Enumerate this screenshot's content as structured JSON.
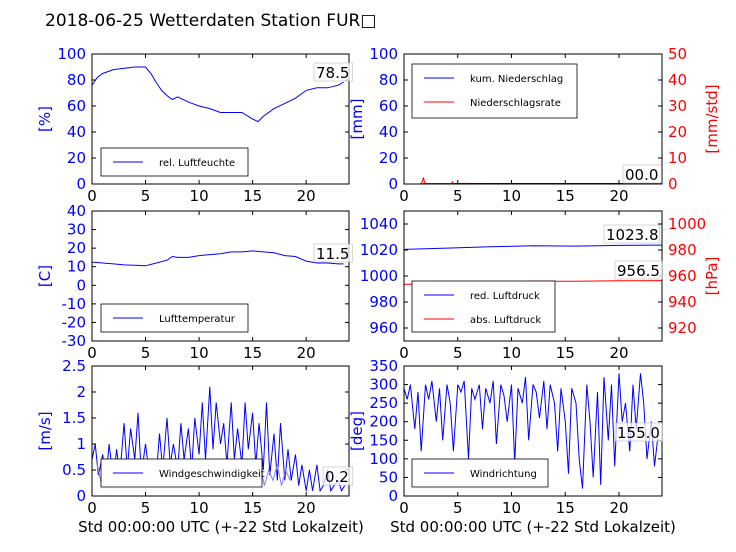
{
  "figure_title": "2018-06-25 Wetterdaten Station FUR□",
  "x_axis_label": "Std 00:00:00 UTC (+-22 Std Lokalzeit)",
  "colors": {
    "left_axis": "#0000ff",
    "right_axis": "#ff0000",
    "series_blue": "#0000ff",
    "series_red": "#ff0000",
    "series_light": "#8080ff"
  },
  "chart_data": [
    {
      "id": "humidity",
      "type": "line",
      "ylabel": "[%]",
      "xlim": [
        0,
        24
      ],
      "ylim": [
        0,
        100
      ],
      "xticks": [
        0,
        5,
        10,
        15,
        20
      ],
      "yticks": [
        0,
        20,
        40,
        60,
        80,
        100
      ],
      "legend_position": "lower-left",
      "value_label": "78.5",
      "series": [
        {
          "name": "rel. Luftfeuchte",
          "axis": "left",
          "color": "#0000ff",
          "x": [
            0,
            0.5,
            1,
            2,
            3,
            4,
            5,
            5.5,
            6,
            6.5,
            7,
            7.5,
            8,
            9,
            10,
            11,
            12,
            13,
            14,
            15,
            15.5,
            16,
            17,
            18,
            19,
            20,
            21,
            22,
            23,
            23.5
          ],
          "y": [
            76,
            82,
            85,
            88,
            89,
            90,
            90,
            85,
            78,
            72,
            68,
            65,
            67,
            63,
            60,
            58,
            55,
            55,
            55,
            50,
            48,
            52,
            58,
            62,
            66,
            72,
            74,
            74,
            76,
            78.5
          ]
        }
      ]
    },
    {
      "id": "precipitation",
      "type": "line",
      "ylabel": "[mm]",
      "ylabel_right": "[mm/std]",
      "xlim": [
        0,
        24
      ],
      "ylim": [
        0,
        100
      ],
      "ylim_right": [
        0,
        50
      ],
      "xticks": [
        0,
        5,
        10,
        15,
        20
      ],
      "yticks": [
        0,
        20,
        40,
        60,
        80,
        100
      ],
      "yticks_right": [
        0,
        10,
        20,
        30,
        40,
        50
      ],
      "legend_position": "upper-left",
      "value_label": "00.0",
      "series": [
        {
          "name": "kum. Niederschlag",
          "axis": "left",
          "color": "#0000ff",
          "x": [
            0,
            1.7,
            1.8,
            4.5,
            5,
            24
          ],
          "y": [
            0,
            0,
            0.3,
            0.3,
            0.4,
            0.4
          ]
        },
        {
          "name": "Niederschlagsrate",
          "axis": "right",
          "color": "#ff0000",
          "x": [
            0,
            1.5,
            1.6,
            1.7,
            1.8,
            1.9,
            2,
            2.1,
            4.4,
            4.5,
            4.6,
            5.5,
            5.6,
            5.7,
            24
          ],
          "y": [
            0,
            0,
            0.4,
            0.8,
            2.5,
            0.8,
            0.3,
            0,
            0,
            0.8,
            0,
            0,
            0.4,
            0,
            0
          ]
        }
      ]
    },
    {
      "id": "temperature",
      "type": "line",
      "ylabel": "[C]",
      "xlim": [
        0,
        24
      ],
      "ylim": [
        -30,
        40
      ],
      "xticks": [
        0,
        5,
        10,
        15,
        20
      ],
      "yticks": [
        -30,
        -20,
        -10,
        0,
        10,
        20,
        30,
        40
      ],
      "legend_position": "lower-left",
      "value_label": "11.5",
      "series": [
        {
          "name": "Lufttemperatur",
          "axis": "left",
          "color": "#0000ff",
          "x": [
            0,
            1,
            2,
            3,
            4,
            5,
            6,
            7,
            7.5,
            8,
            9,
            10,
            11,
            12,
            13,
            14,
            15,
            16,
            17,
            18,
            19,
            20,
            21,
            22,
            23,
            23.5
          ],
          "y": [
            12.5,
            12,
            11.5,
            11,
            10.8,
            10.5,
            12,
            13.5,
            15.5,
            15,
            15,
            16,
            16.5,
            17,
            18,
            18,
            18.5,
            18,
            17.5,
            16,
            15.5,
            13,
            12,
            12,
            11.5,
            11.5
          ]
        }
      ]
    },
    {
      "id": "pressure",
      "type": "line",
      "ylabel_right": "[hPa]",
      "xlim": [
        0,
        24
      ],
      "ylim": [
        950,
        1050
      ],
      "ylim_right": [
        910,
        1010
      ],
      "xticks": [
        0,
        5,
        10,
        15,
        20
      ],
      "yticks": [
        960,
        980,
        1000,
        1020,
        1040
      ],
      "yticks_right": [
        920,
        940,
        960,
        980,
        1000
      ],
      "legend_position": "lower-left",
      "value_labels": [
        "1023.8",
        "956.5"
      ],
      "series": [
        {
          "name": "red. Luftdruck",
          "axis": "left",
          "color": "#0000ff",
          "x": [
            0,
            4,
            8,
            12,
            16,
            20,
            24
          ],
          "y": [
            1020.5,
            1021.5,
            1022.5,
            1023.2,
            1023,
            1023.5,
            1023.8
          ]
        },
        {
          "name": "abs. Luftdruck",
          "axis": "right",
          "color": "#ff0000",
          "x": [
            0,
            4,
            8,
            12,
            16,
            20,
            24
          ],
          "y": [
            953.5,
            954.5,
            955.5,
            956,
            956,
            956.3,
            956.5
          ]
        }
      ]
    },
    {
      "id": "wind_speed",
      "type": "line",
      "ylabel": "[m/s]",
      "xlim": [
        0,
        24
      ],
      "ylim": [
        0,
        2.5
      ],
      "xticks": [
        0,
        5,
        10,
        15,
        20
      ],
      "yticks": [
        0,
        0.5,
        1.0,
        1.5,
        2.0,
        2.5
      ],
      "legend_position": "lower-left",
      "value_label": "0.2",
      "series": [
        {
          "name": "Windgeschwindigkeit",
          "axis": "left",
          "color": "#0000ff",
          "x": [
            0,
            0.3,
            0.6,
            1,
            1.3,
            1.6,
            2,
            2.3,
            2.6,
            3,
            3.3,
            3.6,
            4,
            4.3,
            4.6,
            5,
            5.3,
            5.6,
            6,
            6.3,
            6.6,
            7,
            7.3,
            7.6,
            8,
            8.3,
            8.6,
            9,
            9.3,
            9.6,
            10,
            10.3,
            10.6,
            11,
            11.3,
            11.6,
            12,
            12.3,
            12.6,
            13,
            13.3,
            13.6,
            14,
            14.3,
            14.6,
            15,
            15.3,
            15.6,
            16,
            16.3,
            16.6,
            17,
            17.3,
            17.6,
            18,
            18.3,
            18.6,
            19,
            19.3,
            19.6,
            20,
            20.3,
            20.6,
            21,
            21.3,
            21.6,
            22,
            22.3,
            22.6,
            23,
            23.3,
            23.6
          ],
          "y": [
            0.7,
            1.0,
            0.4,
            0.8,
            0.3,
            1.0,
            0.3,
            0.9,
            0.4,
            1.4,
            0.5,
            1.3,
            0.7,
            1.6,
            0.4,
            1.0,
            0.5,
            0.7,
            0.4,
            1.2,
            0.5,
            1.5,
            0.6,
            1.0,
            0.5,
            1.4,
            0.7,
            1.3,
            0.5,
            1.5,
            0.8,
            1.8,
            0.7,
            2.1,
            0.9,
            1.8,
            1.0,
            1.4,
            0.6,
            1.8,
            0.7,
            1.3,
            0.6,
            1.8,
            0.9,
            1.6,
            0.6,
            1.4,
            0.5,
            1.8,
            0.4,
            1.2,
            0.3,
            1.4,
            0.3,
            0.9,
            0.3,
            0.8,
            0.2,
            0.6,
            0.1,
            0.5,
            0.1,
            0.6,
            0.1,
            0.2,
            0.5,
            0.1,
            0.2,
            0.3,
            0.1,
            0.2
          ]
        },
        {
          "name": "",
          "axis": "left",
          "color": "#8080ff",
          "x": [
            0.5,
            0.9,
            1.3,
            1.7,
            2.1,
            2.5,
            2.9,
            3.3,
            3.7,
            4.1,
            4.5,
            4.9,
            5.3,
            5.7,
            6.1,
            6.5,
            6.9,
            7.3,
            7.7,
            8.1,
            8.5,
            8.9,
            9.3,
            9.7,
            10.1,
            10.5,
            10.9,
            11.3,
            11.7,
            12.1,
            12.5,
            12.9,
            13.3,
            13.7,
            14.1,
            14.5,
            14.9,
            15.3,
            15.7,
            16.1,
            16.5,
            16.9,
            17.3,
            17.7,
            18.1,
            18.5
          ],
          "y": [
            0.6,
            0.2,
            0.6,
            0.2,
            0.6,
            0.3,
            0.6,
            0.2,
            0.5,
            0.3,
            0.6,
            0.2,
            0.6,
            0.3,
            0.5,
            0.2,
            0.6,
            0.3,
            0.5,
            0.2,
            0.6,
            0.3,
            0.6,
            0.2,
            0.5,
            0.3,
            0.6,
            0.2,
            0.6,
            0.3,
            0.5,
            0.2,
            0.6,
            0.3,
            0.5,
            0.2,
            0.6,
            0.3,
            0.6,
            0.2,
            0.5,
            0.3,
            0.6,
            0.2,
            0.5,
            0.3
          ]
        }
      ]
    },
    {
      "id": "wind_direction",
      "type": "line",
      "ylabel": "[deg]",
      "xlim": [
        0,
        24
      ],
      "ylim": [
        0,
        350
      ],
      "xticks": [
        0,
        5,
        10,
        15,
        20
      ],
      "yticks": [
        0,
        50,
        100,
        150,
        200,
        250,
        300,
        350
      ],
      "legend_position": "lower-left",
      "value_label": "155.0",
      "series": [
        {
          "name": "Windrichtung",
          "axis": "left",
          "color": "#0000ff",
          "x": [
            0,
            0.3,
            0.6,
            1,
            1.3,
            1.6,
            2,
            2.3,
            2.6,
            3,
            3.3,
            3.6,
            4,
            4.3,
            4.6,
            5,
            5.3,
            5.6,
            6,
            6.3,
            6.6,
            7,
            7.3,
            7.6,
            8,
            8.3,
            8.6,
            9,
            9.3,
            9.6,
            10,
            10.3,
            10.6,
            11,
            11.3,
            11.6,
            12,
            12.3,
            12.6,
            13,
            13.3,
            13.6,
            14,
            14.3,
            14.6,
            15,
            15.3,
            15.6,
            16,
            16.3,
            16.6,
            17,
            17.3,
            17.6,
            18,
            18.3,
            18.6,
            19,
            19.3,
            19.6,
            20,
            20.3,
            20.6,
            21,
            21.3,
            21.6,
            22,
            22.3,
            22.6,
            23,
            23.3,
            23.6
          ],
          "y": [
            290,
            260,
            300,
            180,
            280,
            120,
            300,
            260,
            310,
            200,
            290,
            150,
            300,
            250,
            120,
            300,
            280,
            310,
            100,
            290,
            260,
            300,
            180,
            290,
            250,
            310,
            140,
            300,
            270,
            200,
            300,
            90,
            290,
            250,
            320,
            150,
            300,
            280,
            210,
            310,
            180,
            300,
            250,
            120,
            290,
            200,
            60,
            290,
            250,
            100,
            20,
            300,
            200,
            50,
            280,
            30,
            320,
            150,
            300,
            80,
            330,
            200,
            250,
            120,
            300,
            180,
            330,
            250,
            100,
            200,
            80,
            155
          ]
        }
      ]
    }
  ]
}
